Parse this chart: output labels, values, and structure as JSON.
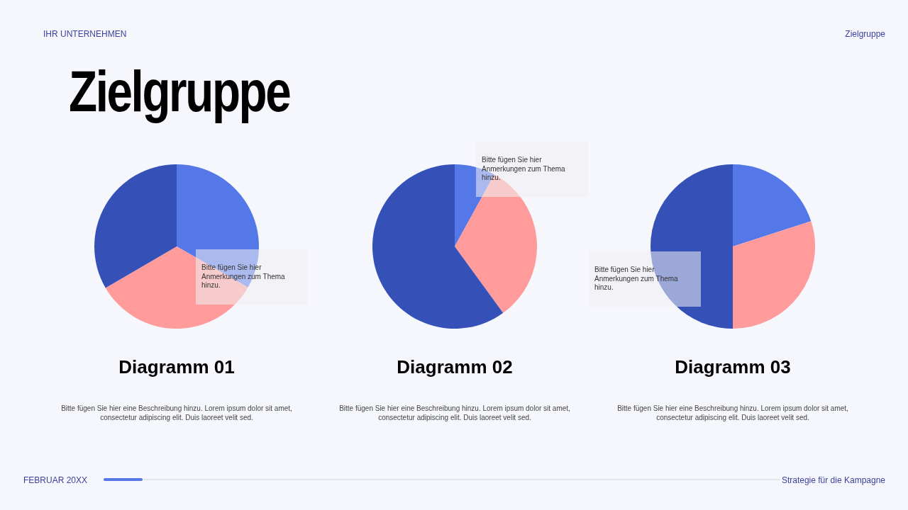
{
  "chart_data": [
    {
      "type": "other",
      "title": "Zielgruppe",
      "annotations": [
        "IHR UNTERNEHMEN",
        "Zielgruppe",
        "FEBRUAR 20XX",
        "Strategie für die Kampagne"
      ]
    },
    {
      "type": "pie",
      "title": "Diagramm 01",
      "categories": [
        null,
        null,
        null
      ],
      "values": [
        33.3,
        33.3,
        33.4
      ],
      "colors": [
        "#5578e8",
        "#ff9b9b",
        "#3551b8"
      ],
      "annotations": [
        "Bitte fügen Sie hier Anmerkungen zum Thema hinzu.",
        "Bitte fügen Sie hier eine Beschreibung hinzu. Lorem ipsum dolor sit amet, consectetur adipiscing elit. Duis laoreet velit sed."
      ]
    },
    {
      "type": "pie",
      "title": "Diagramm 02",
      "categories": [
        null,
        null,
        null
      ],
      "values": [
        8,
        32,
        60
      ],
      "colors": [
        "#5578e8",
        "#ff9b9b",
        "#3551b8"
      ],
      "annotations": [
        "Bitte fügen Sie hier Anmerkungen zum Thema hinzu.",
        "Bitte fügen Sie hier eine Beschreibung hinzu. Lorem ipsum dolor sit amet, consectetur adipiscing elit. Duis laoreet velit sed."
      ]
    },
    {
      "type": "pie",
      "title": "Diagramm 03",
      "categories": [
        null,
        null,
        null
      ],
      "values": [
        20,
        30,
        50
      ],
      "colors": [
        "#5578e8",
        "#ff9b9b",
        "#3551b8"
      ],
      "annotations": [
        "Bitte fügen Sie hier Anmerkungen zum Thema hinzu.",
        "Bitte fügen Sie hier eine Beschreibung hinzu. Lorem ipsum dolor sit amet, consectetur adipiscing elit. Duis laoreet velit sed."
      ]
    }
  ]
}
